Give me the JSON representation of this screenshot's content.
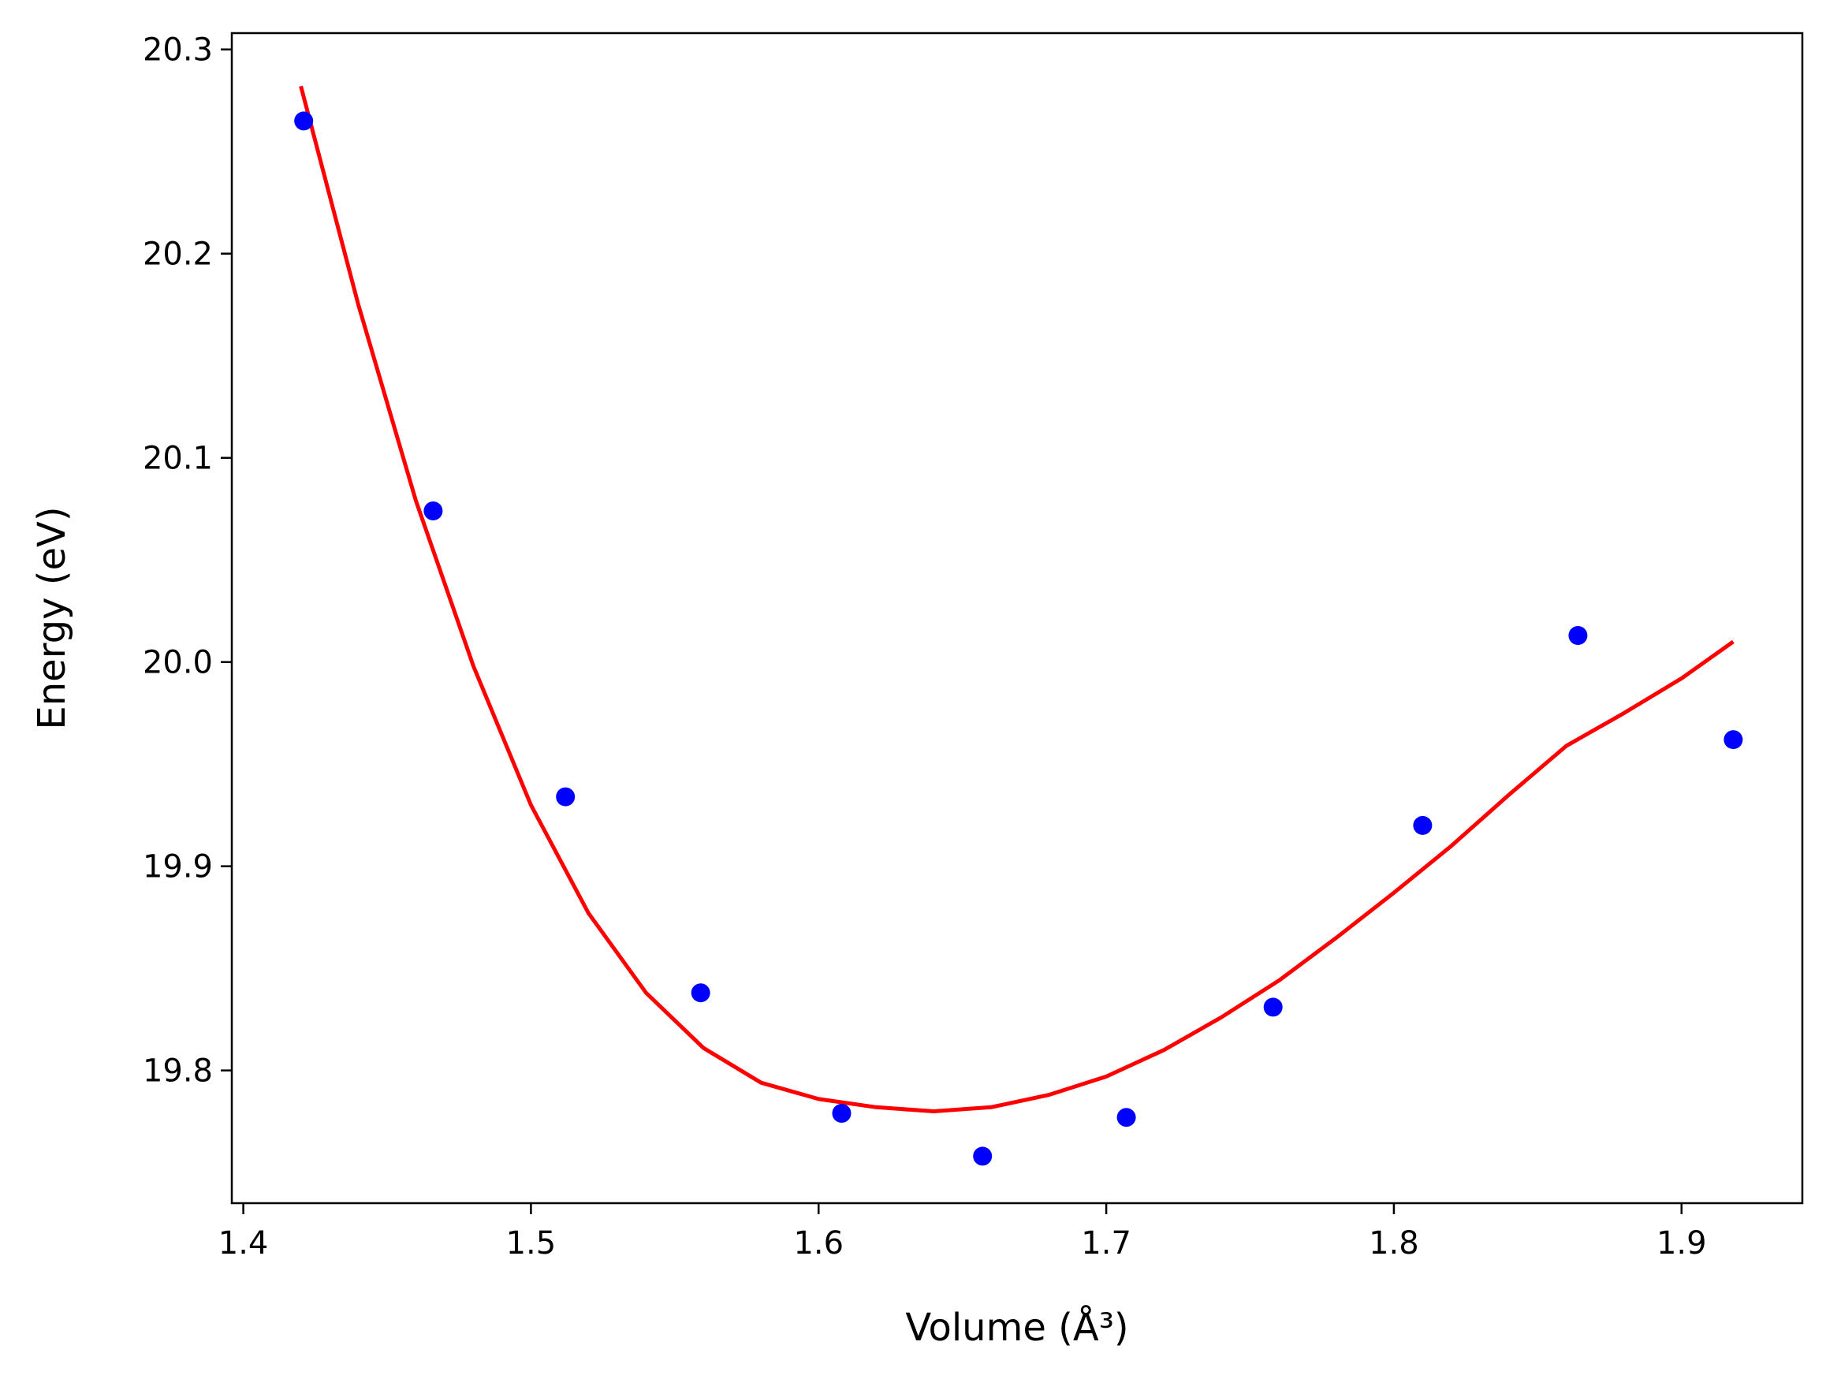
{
  "chart_data": {
    "type": "scatter",
    "title": "",
    "xlabel": "Volume (Å³)",
    "ylabel": "Energy (eV)",
    "xlim": [
      1.396,
      1.942
    ],
    "ylim": [
      19.735,
      20.308
    ],
    "x_ticks": [
      "1.4",
      "1.5",
      "1.6",
      "1.7",
      "1.8",
      "1.9"
    ],
    "y_ticks": [
      "19.8",
      "19.9",
      "20.0",
      "20.1",
      "20.2",
      "20.3"
    ],
    "grid": false,
    "colors": {
      "points": "#0000ff",
      "fit": "#ff0000"
    },
    "series": [
      {
        "kind": "scatter",
        "x": [
          1.421,
          1.466,
          1.512,
          1.559,
          1.608,
          1.657,
          1.707,
          1.758,
          1.81,
          1.864,
          1.918
        ],
        "y": [
          20.265,
          20.074,
          19.934,
          19.838,
          19.779,
          19.758,
          19.777,
          19.831,
          19.92,
          20.013,
          19.962
        ]
      },
      {
        "kind": "line",
        "x": [
          1.42,
          1.44,
          1.46,
          1.48,
          1.5,
          1.52,
          1.54,
          1.56,
          1.58,
          1.6,
          1.62,
          1.64,
          1.66,
          1.68,
          1.7,
          1.72,
          1.74,
          1.76,
          1.78,
          1.8,
          1.82,
          1.84,
          1.86,
          1.88,
          1.9,
          1.918
        ],
        "y": [
          20.282,
          20.175,
          20.079,
          19.998,
          19.93,
          19.877,
          19.838,
          19.811,
          19.794,
          19.786,
          19.782,
          19.78,
          19.782,
          19.788,
          19.797,
          19.81,
          19.826,
          19.844,
          19.865,
          19.887,
          19.91,
          19.935,
          19.959,
          19.975,
          19.992,
          20.01
        ]
      }
    ]
  }
}
